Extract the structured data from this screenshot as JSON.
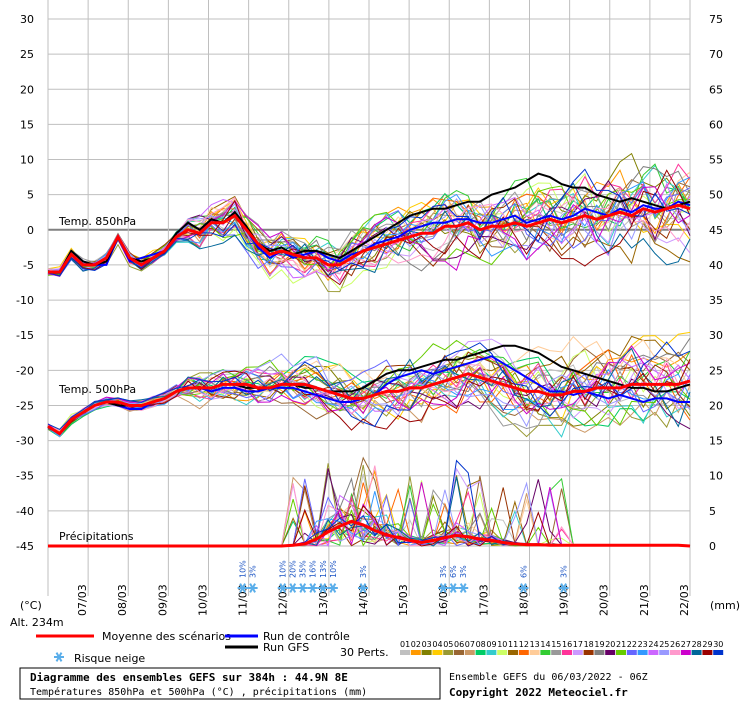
{
  "chart_data": {
    "type": "line",
    "title": "Diagramme des ensembles GEFS sur 384h : 44.9N 8E",
    "subtitle": "Températures 850hPa et 500hPa (°C) , précipitations (mm)",
    "left_unit": "(°C)",
    "right_unit": "(mm)",
    "altitude": "Alt. 234m",
    "y_left_ticks": [
      30,
      25,
      20,
      15,
      10,
      5,
      0,
      -5,
      -10,
      -15,
      -20,
      -25,
      -30,
      -35,
      -40,
      -45
    ],
    "y_right_ticks": [
      75,
      70,
      65,
      60,
      55,
      50,
      45,
      40,
      35,
      30,
      25,
      20,
      15,
      10,
      5,
      0
    ],
    "ylim_left": [
      -45,
      30
    ],
    "x_day_labels": [
      "07/03",
      "08/03",
      "09/03",
      "10/03",
      "11/03",
      "12/03",
      "13/03",
      "14/03",
      "15/03",
      "16/03",
      "17/03",
      "18/03",
      "19/03",
      "20/03",
      "21/03",
      "22/03"
    ],
    "panel_labels": {
      "t850": "Temp. 850hPa",
      "t500": "Temp. 500hPa",
      "precip": "Précipitations"
    },
    "t850_mean": [
      -6,
      -6,
      -3.5,
      -5,
      -5,
      -4,
      -1,
      -4,
      -5,
      -4,
      -3,
      -1,
      0,
      -0.5,
      1,
      1,
      2,
      0,
      -2,
      -3.5,
      -3,
      -3.5,
      -4,
      -4,
      -5,
      -5,
      -4,
      -3,
      -2.5,
      -2,
      -1.5,
      -1,
      -0.5,
      -0.5,
      0.5,
      0.5,
      1,
      0,
      0.5,
      0.5,
      1,
      0.5,
      1,
      1.5,
      1,
      1.5,
      2,
      1.5,
      2,
      2.5,
      2,
      3,
      2.5,
      3,
      3.5,
      3
    ],
    "t850_control": [
      -6,
      -6,
      -3,
      -4.5,
      -5,
      -5,
      -1,
      -4.5,
      -4,
      -3.5,
      -3,
      -0.5,
      1,
      0,
      1.5,
      1,
      2.5,
      0,
      -2.5,
      -4,
      -3,
      -4,
      -3.5,
      -3,
      -4,
      -4.5,
      -3.5,
      -3,
      -2,
      -1.5,
      -1,
      0,
      0.5,
      1,
      1,
      1.5,
      1.5,
      1,
      1,
      1.5,
      2,
      1,
      1.5,
      2,
      1.5,
      2,
      3,
      2.5,
      2,
      3,
      2.5,
      3.5,
      3,
      3,
      4,
      3.5
    ],
    "t850_gfs": [
      -6,
      -6,
      -3,
      -4.5,
      -5,
      -4.5,
      -1,
      -4,
      -4.5,
      -4,
      -3,
      -0.5,
      1,
      0,
      1.5,
      1,
      2.5,
      0.5,
      -2,
      -3,
      -2.5,
      -3.5,
      -3,
      -3,
      -3.5,
      -4,
      -3,
      -2,
      -1,
      0,
      1,
      2,
      2.5,
      3,
      3,
      3.5,
      4,
      4,
      5,
      5.5,
      6,
      7,
      8,
      7.5,
      6.5,
      6,
      6,
      5,
      4.5,
      4,
      4.5,
      4,
      3.5,
      3,
      3.5,
      4
    ],
    "t500_mean": [
      -28,
      -29,
      -27,
      -26,
      -25,
      -24.5,
      -24.5,
      -25,
      -25,
      -24.5,
      -24,
      -23,
      -22.5,
      -22.5,
      -22.5,
      -22,
      -22,
      -22,
      -22.5,
      -22.5,
      -22,
      -22,
      -22,
      -22.5,
      -23,
      -23.5,
      -24,
      -24,
      -23.5,
      -23,
      -23,
      -22.5,
      -22.5,
      -22,
      -21.5,
      -21,
      -20.5,
      -21,
      -21.5,
      -22,
      -22.5,
      -23,
      -23,
      -23.5,
      -23.5,
      -23,
      -23,
      -22.5,
      -22.5,
      -22.5,
      -22,
      -22,
      -22,
      -22,
      -22,
      -21.5
    ],
    "t500_control": [
      -28,
      -29,
      -27,
      -26,
      -25,
      -24.5,
      -25,
      -25.5,
      -25.5,
      -24.5,
      -24,
      -23,
      -22.5,
      -22.5,
      -23,
      -22.5,
      -22.5,
      -23,
      -23,
      -22.5,
      -22.5,
      -22.5,
      -23,
      -23.5,
      -24,
      -24.5,
      -24.5,
      -24,
      -23.5,
      -22,
      -21,
      -20.5,
      -20,
      -20.5,
      -20,
      -19.5,
      -19,
      -18.5,
      -18,
      -19,
      -20,
      -21,
      -22,
      -23,
      -23,
      -23.5,
      -23,
      -23.5,
      -24,
      -23.5,
      -24,
      -24.5,
      -24,
      -24,
      -24.5,
      -24.5
    ],
    "t500_gfs": [
      -28,
      -29,
      -27,
      -26,
      -25,
      -24.5,
      -25,
      -25,
      -25,
      -24.5,
      -24,
      -23,
      -22.5,
      -22.5,
      -22.5,
      -22,
      -22,
      -22.5,
      -22.5,
      -22.5,
      -22,
      -22,
      -22.5,
      -22.5,
      -23,
      -23,
      -23,
      -22.5,
      -21.5,
      -20.5,
      -20,
      -20,
      -19.5,
      -19,
      -18.5,
      -18.5,
      -18,
      -17.5,
      -17,
      -16.5,
      -16.5,
      -17,
      -17.5,
      -18.5,
      -19.5,
      -20,
      -20.5,
      -21,
      -21.5,
      -22,
      -22.5,
      -22.5,
      -23,
      -23,
      -22.5,
      -22
    ],
    "precip_mean_mm": [
      0,
      0,
      0,
      0,
      0,
      0,
      0,
      0,
      0,
      0,
      0,
      0,
      0,
      0,
      0,
      0,
      0,
      0,
      0,
      0,
      0,
      0.1,
      0.3,
      1,
      2,
      2.8,
      3.5,
      3,
      2.2,
      1.6,
      1.2,
      0.8,
      0.5,
      0.8,
      1.2,
      1.5,
      1.3,
      1,
      0.8,
      0.5,
      0.3,
      0.2,
      0.2,
      0.1,
      0.1,
      0.1,
      0.1,
      0.1,
      0.1,
      0.1,
      0.1,
      0.1,
      0.1,
      0.1,
      0.1,
      0
    ],
    "snow_risk": [
      {
        "day": "12/03",
        "pct": "10%"
      },
      {
        "day": "12/03",
        "pct": "3%"
      },
      {
        "day": "13/03",
        "pct": "10%"
      },
      {
        "day": "13/03",
        "pct": "20%"
      },
      {
        "day": "13/03",
        "pct": "35%"
      },
      {
        "day": "13/03",
        "pct": "16%"
      },
      {
        "day": "14/03",
        "pct": "13%"
      },
      {
        "day": "14/03",
        "pct": "10%"
      },
      {
        "day": "15/03",
        "pct": "3%"
      },
      {
        "day": "17/03",
        "pct": "3%"
      },
      {
        "day": "17/03",
        "pct": "6%"
      },
      {
        "day": "17/03",
        "pct": "3%"
      },
      {
        "day": "19/03",
        "pct": "6%"
      },
      {
        "day": "20/03",
        "pct": "3%"
      }
    ],
    "legend": {
      "mean": "Moyenne des scénarios",
      "control": "Run de contrôle",
      "gfs": "Run GFS",
      "snow": "Risque neige",
      "perts": "30 Perts."
    },
    "pert_labels": [
      "01",
      "02",
      "03",
      "04",
      "05",
      "06",
      "07",
      "08",
      "09",
      "10",
      "11",
      "12",
      "13",
      "14",
      "15",
      "16",
      "17",
      "18",
      "19",
      "20",
      "21",
      "22",
      "23",
      "24",
      "25",
      "26",
      "27",
      "28",
      "29",
      "30"
    ],
    "pert_colors": [
      "#c0c0c0",
      "#ff9900",
      "#808000",
      "#ffcc00",
      "#999933",
      "#996633",
      "#cc9966",
      "#00cc66",
      "#33cccc",
      "#ccff66",
      "#996600",
      "#ff6600",
      "#ffcc99",
      "#33cc33",
      "#999999",
      "#ff3399",
      "#cc99ff",
      "#993300",
      "#808080",
      "#660066",
      "#66cc00",
      "#6666ff",
      "#3399ff",
      "#cc66ff",
      "#9999ff",
      "#ff99cc",
      "#cc00cc",
      "#006699",
      "#990000",
      "#0033cc"
    ],
    "colors": {
      "mean": "#ff0000",
      "control": "#0000ff",
      "gfs": "#000000",
      "grid": "#bfbfbf",
      "snow": "#5aaeea"
    },
    "footer": {
      "title": "Diagramme des ensembles GEFS sur 384h : 44.9N 8E",
      "subtitle": "Températures 850hPa et 500hPa (°C) , précipitations (mm)",
      "run_info": "Ensemble GEFS du 06/03/2022 - 06Z",
      "copyright": "Copyright 2022 Meteociel.fr"
    }
  }
}
